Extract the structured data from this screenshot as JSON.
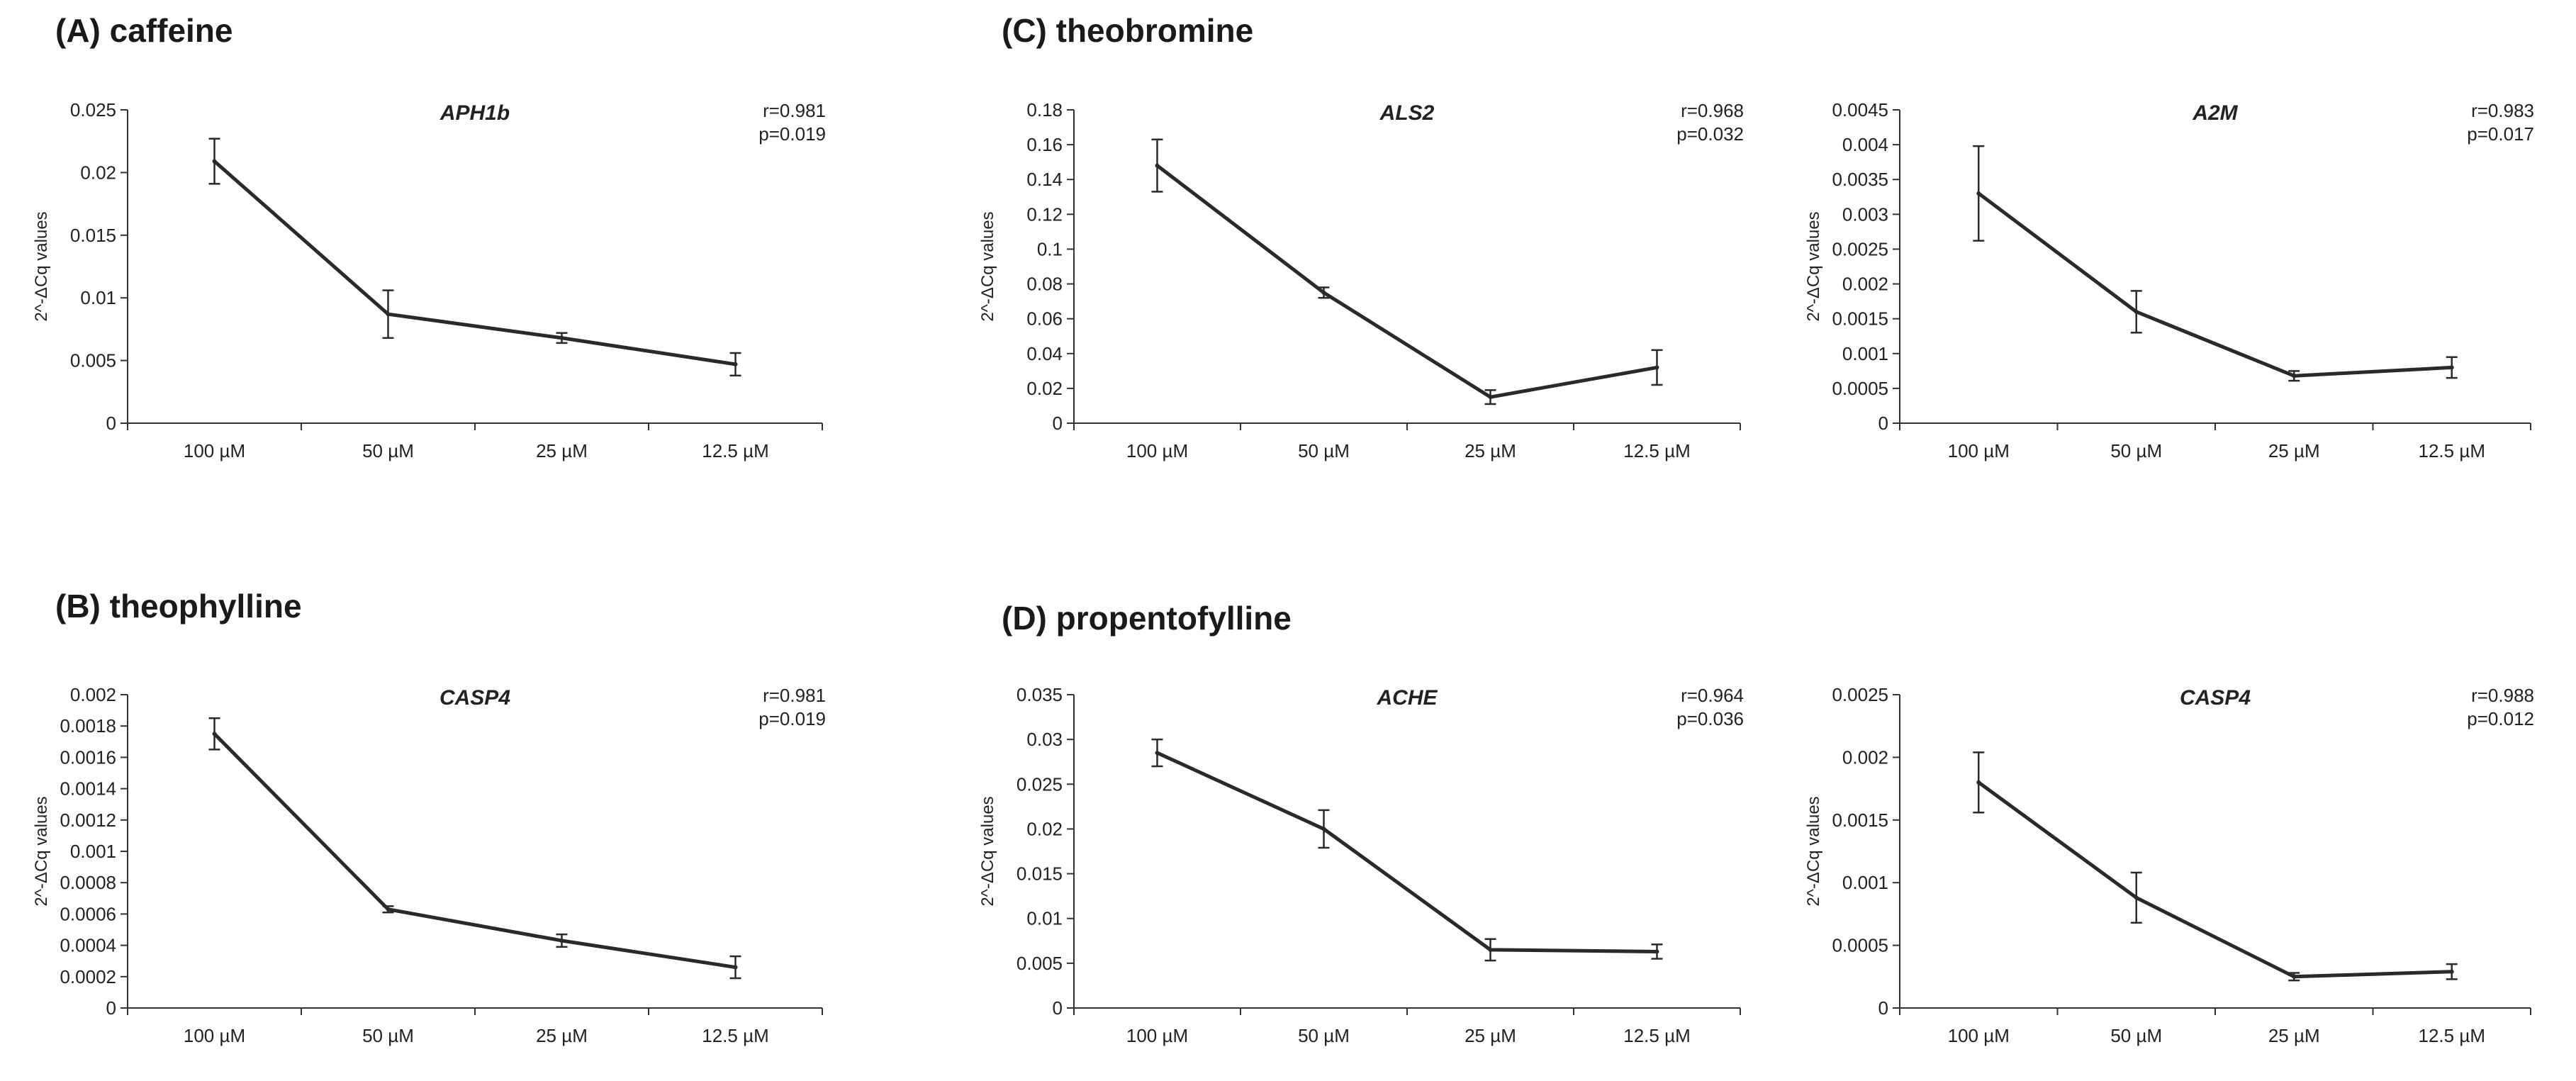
{
  "sections": [
    {
      "id": "A",
      "label": "(A) caffeine"
    },
    {
      "id": "B",
      "label": "(B) theophylline"
    },
    {
      "id": "C",
      "label": "(C) theobromine"
    },
    {
      "id": "D",
      "label": "(D) propentofylline"
    }
  ],
  "chart_data": [
    {
      "type": "line",
      "title": "APH1b",
      "ylabel": "2^-ΔCq values",
      "xlabel": "",
      "categories": [
        "100 µM",
        "50 µM",
        "25 µM",
        "12.5 µM"
      ],
      "values": [
        0.0209,
        0.0087,
        0.0068,
        0.0047
      ],
      "errors": [
        0.0018,
        0.0019,
        0.0004,
        0.0009
      ],
      "ylim": [
        0,
        0.025
      ],
      "yticks": [
        "0",
        "0.005",
        "0.01",
        "0.015",
        "0.02",
        "0.025"
      ],
      "stat_r": "r=0.981",
      "stat_p": "p=0.019"
    },
    {
      "type": "line",
      "title": "CASP4",
      "ylabel": "2^-ΔCq values",
      "xlabel": "",
      "categories": [
        "100 µM",
        "50 µM",
        "25 µM",
        "12.5 µM"
      ],
      "values": [
        0.00175,
        0.00063,
        0.00043,
        0.00026
      ],
      "errors": [
        0.0001,
        2e-05,
        4e-05,
        7e-05
      ],
      "ylim": [
        0,
        0.002
      ],
      "yticks": [
        "0",
        "0.0002",
        "0.0004",
        "0.0006",
        "0.0008",
        "0.001",
        "0.0012",
        "0.0014",
        "0.0016",
        "0.0018",
        "0.002"
      ],
      "stat_r": "r=0.981",
      "stat_p": "p=0.019"
    },
    {
      "type": "line",
      "title": "ALS2",
      "ylabel": "2^-ΔCq values",
      "xlabel": "",
      "categories": [
        "100 µM",
        "50 µM",
        "25 µM",
        "12.5 µM"
      ],
      "values": [
        0.148,
        0.075,
        0.015,
        0.032
      ],
      "errors": [
        0.015,
        0.003,
        0.004,
        0.01
      ],
      "ylim": [
        0,
        0.18
      ],
      "yticks": [
        "0",
        "0.02",
        "0.04",
        "0.06",
        "0.08",
        "0.1",
        "0.12",
        "0.14",
        "0.16",
        "0.18"
      ],
      "stat_r": "r=0.968",
      "stat_p": "p=0.032"
    },
    {
      "type": "line",
      "title": "A2M",
      "ylabel": "2^-ΔCq values",
      "xlabel": "",
      "categories": [
        "100 µM",
        "50 µM",
        "25 µM",
        "12.5 µM"
      ],
      "values": [
        0.0033,
        0.0016,
        0.00068,
        0.0008
      ],
      "errors": [
        0.00068,
        0.0003,
        7e-05,
        0.00015
      ],
      "ylim": [
        0,
        0.0045
      ],
      "yticks": [
        "0",
        "0.0005",
        "0.001",
        "0.0015",
        "0.002",
        "0.0025",
        "0.003",
        "0.0035",
        "0.004",
        "0.0045"
      ],
      "stat_r": "r=0.983",
      "stat_p": "p=0.017"
    },
    {
      "type": "line",
      "title": "ACHE",
      "ylabel": "2^-ΔCq values",
      "xlabel": "",
      "categories": [
        "100 µM",
        "50 µM",
        "25 µM",
        "12.5 µM"
      ],
      "values": [
        0.0285,
        0.02,
        0.0065,
        0.0063
      ],
      "errors": [
        0.0015,
        0.0021,
        0.0012,
        0.0008
      ],
      "ylim": [
        0,
        0.035
      ],
      "yticks": [
        "0",
        "0.005",
        "0.01",
        "0.015",
        "0.02",
        "0.025",
        "0.03",
        "0.035"
      ],
      "stat_r": "r=0.964",
      "stat_p": "p=0.036"
    },
    {
      "type": "line",
      "title": "CASP4",
      "ylabel": "2^-ΔCq values",
      "xlabel": "",
      "categories": [
        "100 µM",
        "50 µM",
        "25 µM",
        "12.5 µM"
      ],
      "values": [
        0.0018,
        0.00088,
        0.00025,
        0.00029
      ],
      "errors": [
        0.00024,
        0.0002,
        3e-05,
        6e-05
      ],
      "ylim": [
        0,
        0.0025
      ],
      "yticks": [
        "0",
        "0.0005",
        "0.001",
        "0.0015",
        "0.002",
        "0.0025"
      ],
      "stat_r": "r=0.988",
      "stat_p": "p=0.012"
    }
  ]
}
